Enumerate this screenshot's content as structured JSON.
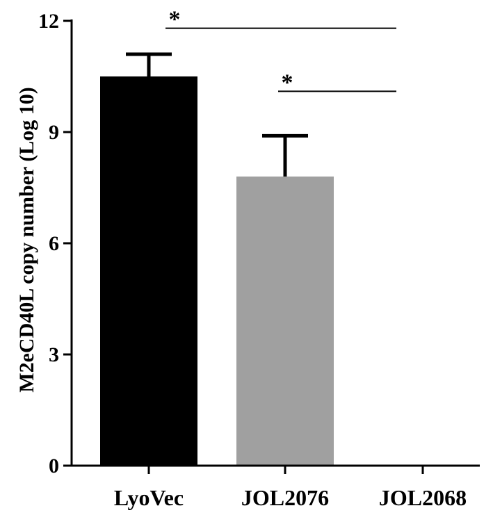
{
  "chart_data": {
    "type": "bar",
    "title": "",
    "xlabel": "",
    "ylabel": "M2eCD40L copy number (Log 10)",
    "ylim": [
      0,
      12
    ],
    "yticks": [
      0,
      3,
      6,
      9,
      12
    ],
    "ytick_labels": [
      "0",
      "3",
      "6",
      "9",
      "12"
    ],
    "categories": [
      "LyoVec",
      "JOL2076",
      "JOL2068"
    ],
    "values": [
      10.5,
      7.8,
      0
    ],
    "errors": [
      0.6,
      1.1,
      0
    ],
    "colors": [
      "#000000",
      "#a0a0a0",
      "#ffffff"
    ],
    "grid": false,
    "legend": "none",
    "significance": [
      {
        "from": 0,
        "to": 2,
        "y": 11.8,
        "label": "*"
      },
      {
        "from": 1,
        "to": 2,
        "y": 10.1,
        "label": "*"
      }
    ]
  }
}
